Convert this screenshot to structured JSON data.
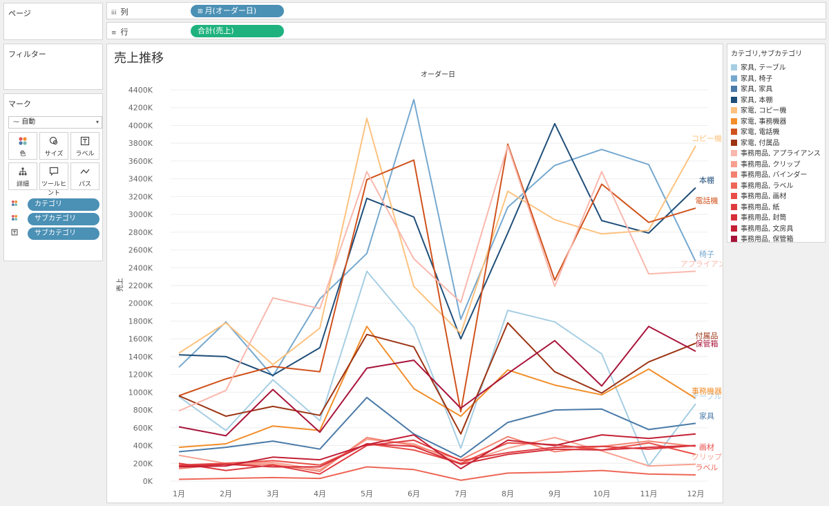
{
  "pages_panel": {
    "title": "ページ"
  },
  "filters_panel": {
    "title": "フィルター"
  },
  "marks_panel": {
    "title": "マーク",
    "mark_type": "自動",
    "mark_type_icon": "line-icon",
    "buttons": [
      {
        "label": "色",
        "icon": "color-dots-icon"
      },
      {
        "label": "サイズ",
        "icon": "size-icon"
      },
      {
        "label": "ラベル",
        "icon": "text-label-icon"
      },
      {
        "label": "詳細",
        "icon": "detail-icon"
      },
      {
        "label": "ツールヒント",
        "icon": "tooltip-icon"
      },
      {
        "label": "パス",
        "icon": "path-icon"
      }
    ],
    "pills": [
      {
        "label": "カテゴリ",
        "icon": "color-dots-icon"
      },
      {
        "label": "サブカテゴリ",
        "icon": "color-dots-icon"
      },
      {
        "label": "サブカテゴリ",
        "icon": "text-label-icon"
      }
    ]
  },
  "columns_shelf": {
    "label": "列",
    "pill": "月(オーダー日)",
    "pill_prefix": "⊞"
  },
  "rows_shelf": {
    "label": "行",
    "pill": "合計(売上)"
  },
  "legend": {
    "title": "カテゴリ,サブカテゴリ",
    "items": [
      {
        "label": "家具, テーブル",
        "color": "#a6cee3"
      },
      {
        "label": "家具, 椅子",
        "color": "#75a8cf"
      },
      {
        "label": "家具, 家具",
        "color": "#4a7aa8"
      },
      {
        "label": "家具, 本棚",
        "color": "#1f4e79"
      },
      {
        "label": "家電, コピー機",
        "color": "#fdc27f"
      },
      {
        "label": "家電, 事務機器",
        "color": "#f28e2b"
      },
      {
        "label": "家電, 電話機",
        "color": "#d0521c"
      },
      {
        "label": "家電, 付属品",
        "color": "#9c3313"
      },
      {
        "label": "事務用品, アプライアンス",
        "color": "#f9b8ad"
      },
      {
        "label": "事務用品, クリップ",
        "color": "#f7a090"
      },
      {
        "label": "事務用品, バインダー",
        "color": "#f38271"
      },
      {
        "label": "事務用品, ラベル",
        "color": "#ee6656"
      },
      {
        "label": "事務用品, 画材",
        "color": "#e84e48"
      },
      {
        "label": "事務用品, 紙",
        "color": "#df3b3f"
      },
      {
        "label": "事務用品, 封筒",
        "color": "#d62f3a"
      },
      {
        "label": "事務用品, 文房具",
        "color": "#c31f35"
      },
      {
        "label": "事務用品, 保管箱",
        "color": "#a8133a"
      }
    ]
  },
  "chart_data": {
    "type": "line",
    "title": "売上推移",
    "xlabel": "オーダー日",
    "ylabel": "売上",
    "categories": [
      "1月",
      "2月",
      "3月",
      "4月",
      "5月",
      "6月",
      "7月",
      "8月",
      "9月",
      "10月",
      "11月",
      "12月"
    ],
    "ylim": [
      0,
      4400
    ],
    "yticks": [
      0,
      200,
      400,
      600,
      800,
      1000,
      1200,
      1400,
      1600,
      1800,
      2000,
      2200,
      2400,
      2600,
      2800,
      3000,
      3200,
      3400,
      3600,
      3800,
      4000,
      4200,
      4400
    ],
    "ytick_labels": [
      "0K",
      "200K",
      "400K",
      "600K",
      "800K",
      "1000K",
      "1200K",
      "1400K",
      "1600K",
      "1800K",
      "2000K",
      "2200K",
      "2400K",
      "2600K",
      "2800K",
      "3000K",
      "3200K",
      "3400K",
      "3600K",
      "3800K",
      "4000K",
      "4200K",
      "4400K"
    ],
    "grid": true,
    "series": [
      {
        "name": "家具, テーブル",
        "end_label": "テーブル",
        "color": "#a6cee3",
        "values": [
          950,
          570,
          1140,
          680,
          2360,
          1730,
          370,
          1920,
          1790,
          1430,
          170,
          870
        ]
      },
      {
        "name": "家具, 椅子",
        "end_label": "椅子",
        "color": "#75a8cf",
        "values": [
          1280,
          1790,
          1180,
          2050,
          2560,
          4290,
          1820,
          3080,
          3550,
          3730,
          3560,
          2470
        ]
      },
      {
        "name": "家具, 家具",
        "end_label": "家具",
        "color": "#4a7aa8",
        "values": [
          330,
          380,
          450,
          360,
          940,
          530,
          270,
          660,
          800,
          810,
          580,
          650
        ]
      },
      {
        "name": "家具, 本棚",
        "end_label": "本棚",
        "color": "#1f4e79",
        "values": [
          1420,
          1400,
          1190,
          1500,
          3180,
          2970,
          1600,
          2790,
          4020,
          2930,
          2790,
          3300
        ]
      },
      {
        "name": "家電, コピー機",
        "end_label": "コピー機",
        "color": "#fdc27f",
        "values": [
          1440,
          1780,
          1310,
          1720,
          4080,
          2190,
          1660,
          3260,
          2940,
          2780,
          2820,
          3770
        ]
      },
      {
        "name": "家電, 事務機器",
        "end_label": "事務機器",
        "color": "#f28e2b",
        "values": [
          380,
          420,
          620,
          570,
          1740,
          1040,
          730,
          1250,
          1080,
          970,
          1260,
          930
        ]
      },
      {
        "name": "家電, 電話機",
        "end_label": "電話機",
        "color": "#d0521c",
        "values": [
          960,
          1150,
          1290,
          1230,
          3390,
          3610,
          780,
          3790,
          2260,
          3340,
          2910,
          3070
        ]
      },
      {
        "name": "家電, 付属品",
        "end_label": "付属品",
        "color": "#9c3313",
        "values": [
          960,
          730,
          840,
          740,
          1650,
          1510,
          530,
          1780,
          1230,
          990,
          1340,
          1550
        ]
      },
      {
        "name": "事務用品, アプライアンス",
        "end_label": "アプライアンス",
        "color": "#f9b8ad",
        "values": [
          790,
          1020,
          2060,
          1940,
          3480,
          2500,
          2010,
          3770,
          2190,
          3480,
          2330,
          2360
        ]
      },
      {
        "name": "事務用品, クリップ",
        "end_label": "クリップ",
        "color": "#f7a090",
        "values": [
          290,
          200,
          210,
          130,
          470,
          420,
          200,
          370,
          490,
          340,
          170,
          190
        ]
      },
      {
        "name": "事務用品, バインダー",
        "end_label": "",
        "color": "#f38271",
        "values": [
          140,
          190,
          190,
          110,
          490,
          400,
          240,
          500,
          330,
          390,
          450,
          390
        ]
      },
      {
        "name": "事務用品, ラベル",
        "end_label": "ラベル",
        "color": "#ee6656",
        "values": [
          20,
          30,
          40,
          30,
          160,
          130,
          10,
          90,
          100,
          120,
          80,
          70
        ]
      },
      {
        "name": "事務用品, 画材",
        "end_label": "画材",
        "color": "#e84e48",
        "values": [
          180,
          200,
          230,
          180,
          420,
          350,
          200,
          430,
          410,
          350,
          430,
          300
        ]
      },
      {
        "name": "事務用品, 紙",
        "end_label": "",
        "color": "#df3b3f",
        "values": [
          200,
          120,
          180,
          80,
          400,
          460,
          230,
          320,
          380,
          390,
          360,
          400
        ]
      },
      {
        "name": "事務用品, 封筒",
        "end_label": "",
        "color": "#d62f3a",
        "values": [
          170,
          190,
          160,
          160,
          420,
          390,
          190,
          300,
          360,
          350,
          380,
          400
        ]
      },
      {
        "name": "事務用品, 文房具",
        "end_label": "",
        "color": "#c31f35",
        "values": [
          160,
          170,
          270,
          240,
          410,
          520,
          140,
          460,
          400,
          520,
          480,
          530
        ]
      },
      {
        "name": "事務用品, 保管箱",
        "end_label": "保管箱",
        "color": "#a8133a",
        "values": [
          610,
          510,
          1030,
          550,
          1270,
          1360,
          820,
          1210,
          1580,
          1070,
          1740,
          1460
        ]
      }
    ]
  }
}
